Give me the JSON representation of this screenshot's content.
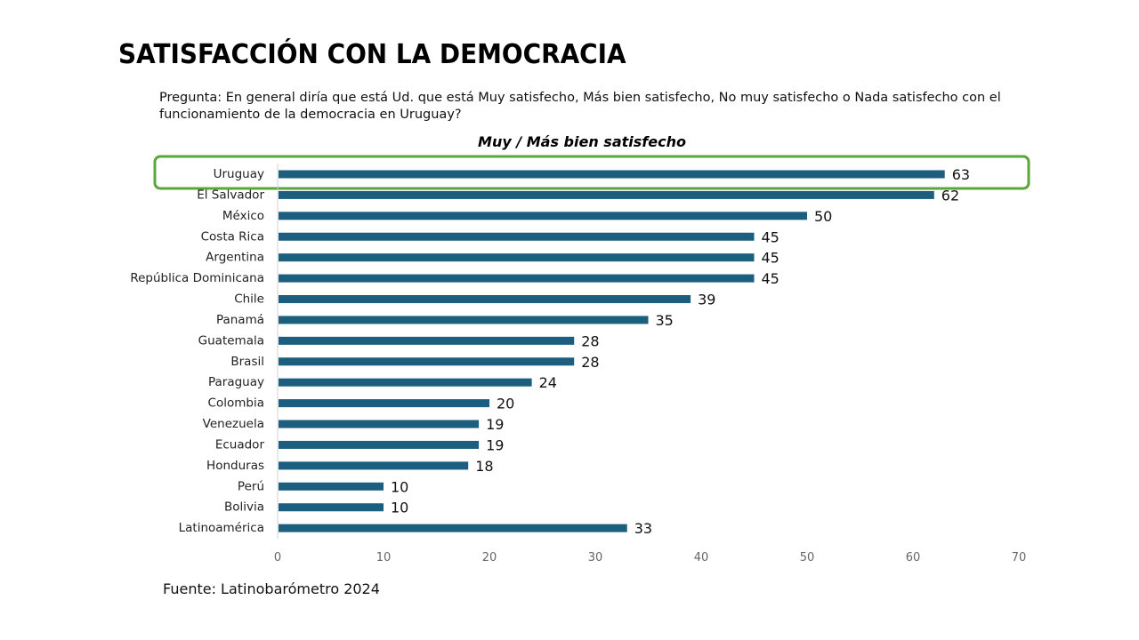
{
  "header": {
    "title": "SATISFACCIÓN CON LA DEMOCRACIA",
    "question": "Pregunta: En general diría que está Ud. que está Muy satisfecho, Más bien satisfecho, No muy satisfecho o Nada satisfecho con el funcionamiento de la democracia en Uruguay?"
  },
  "footer": {
    "source": "Fuente: Latinobarómetro 2024"
  },
  "colors": {
    "bar": "#1b5e7e",
    "highlight": "#5aa53c",
    "axis": "#d0d0d0"
  },
  "chart_data": {
    "type": "bar",
    "orientation": "horizontal",
    "title": "Muy / Más bien satisfecho",
    "xlabel": "",
    "ylabel": "",
    "categories": [
      "Uruguay",
      "El Salvador",
      "México",
      "Costa Rica",
      "Argentina",
      "República Dominicana",
      "Chile",
      "Panamá",
      "Guatemala",
      "Brasil",
      "Paraguay",
      "Colombia",
      "Venezuela",
      "Ecuador",
      "Honduras",
      "Perú",
      "Bolivia",
      "Latinoamérica"
    ],
    "values": [
      63,
      62,
      50,
      45,
      45,
      45,
      39,
      35,
      28,
      28,
      24,
      20,
      19,
      19,
      18,
      10,
      10,
      33
    ],
    "xlim": [
      0,
      70
    ],
    "xticks": [
      0,
      10,
      20,
      30,
      40,
      50,
      60,
      70
    ],
    "grid": false,
    "legend": "none",
    "highlighted_category": "Uruguay",
    "data_labels": true
  }
}
